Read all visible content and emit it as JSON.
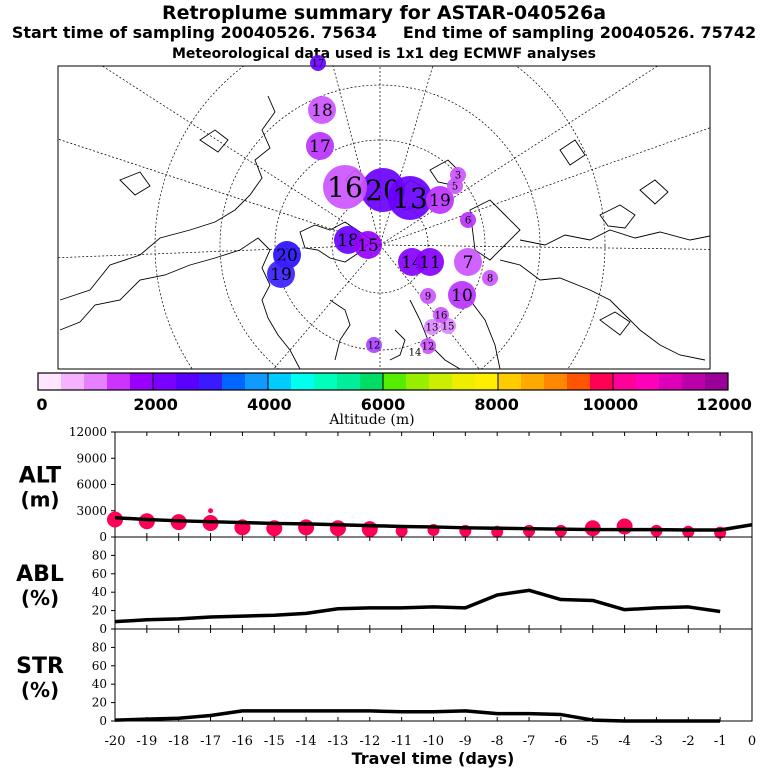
{
  "title": "Retroplume summary for ASTAR-040526a",
  "start_label": "Start time of sampling 20040526. 75634",
  "end_label": "End time of sampling 20040526. 75742",
  "met_label": "Meteorological data used is 1x1 deg ECMWF analyses",
  "map": {
    "plumes": [
      {
        "label": "20",
        "color": "#6a00ff",
        "size": 3
      },
      {
        "label": "16",
        "color": "#cc55ff",
        "size": 3
      },
      {
        "label": "13",
        "color": "#6a00ff",
        "size": 3
      },
      {
        "label": "18",
        "color": "#cc55ff",
        "size": 2
      },
      {
        "label": "17",
        "color": "#bb33ff",
        "size": 2
      },
      {
        "label": "19",
        "color": "#bb33ff",
        "size": 2
      },
      {
        "label": "20",
        "color": "#2a10ff",
        "size": 2
      },
      {
        "label": "19",
        "color": "#3a20ff",
        "size": 2
      },
      {
        "label": "18",
        "color": "#6a00ff",
        "size": 2
      },
      {
        "label": "15",
        "color": "#9900ff",
        "size": 2
      },
      {
        "label": "14",
        "color": "#8800ff",
        "size": 2
      },
      {
        "label": "11",
        "color": "#8800ff",
        "size": 2
      },
      {
        "label": "10",
        "color": "#bb33ff",
        "size": 2
      },
      {
        "label": "9",
        "color": "#cc55ff",
        "size": 1
      },
      {
        "label": "8",
        "color": "#cc55ff",
        "size": 1
      },
      {
        "label": "7",
        "color": "#cc55ff",
        "size": 2
      },
      {
        "label": "6",
        "color": "#bb33ff",
        "size": 1
      },
      {
        "label": "5",
        "color": "#cc55ff",
        "size": 1
      },
      {
        "label": "3",
        "color": "#cc55ff",
        "size": 1
      },
      {
        "label": "12",
        "color": "#cc55ff",
        "size": 1
      },
      {
        "label": "13",
        "color": "#dd88ff",
        "size": 1
      },
      {
        "label": "14",
        "color": "#ffffff",
        "size": 1
      },
      {
        "label": "15",
        "color": "#dd88ff",
        "size": 1
      },
      {
        "label": "16",
        "color": "#cc55ff",
        "size": 1
      },
      {
        "label": "12",
        "color": "#aa44ff",
        "size": 1
      },
      {
        "label": "17",
        "color": "#6a00ff",
        "size": 1
      }
    ]
  },
  "colorbar": {
    "ticks": [
      "0",
      "2000",
      "4000",
      "6000",
      "8000",
      "10000",
      "12000"
    ],
    "label": "Altitude (m)",
    "colors": [
      "#ffe6ff",
      "#f5b3ff",
      "#e680ff",
      "#cc33ff",
      "#9900ff",
      "#7a00ff",
      "#5a00ff",
      "#3a1aff",
      "#0066ff",
      "#1199ff",
      "#00ccff",
      "#00ffee",
      "#00ffbb",
      "#00ee99",
      "#00dd66",
      "#55ee00",
      "#99ee00",
      "#ccee00",
      "#eeee00",
      "#ffee00",
      "#ffcc00",
      "#ffaa00",
      "#ff8800",
      "#ff5500",
      "#ff0055",
      "#ff0099",
      "#ff00bb",
      "#dd00bb",
      "#bb00aa",
      "#990099"
    ]
  },
  "chart_data": [
    {
      "type": "line",
      "name": "ALT",
      "ylabel": "ALT (m)",
      "ylabel_line1": "ALT",
      "ylabel_line2": "(m)",
      "ylim": [
        0,
        12000
      ],
      "yticks": [
        "0",
        "3000",
        "6000",
        "9000",
        "12000"
      ],
      "x": [
        -20,
        -19,
        -18,
        -17,
        -16,
        -15,
        -14,
        -13,
        -12,
        -11,
        -10,
        -9,
        -8,
        -7,
        -6,
        -5,
        -4,
        -3,
        -2,
        -1,
        0
      ],
      "values": [
        2200,
        2000,
        1850,
        1750,
        1650,
        1550,
        1500,
        1400,
        1300,
        1200,
        1150,
        1050,
        1000,
        950,
        900,
        850,
        850,
        850,
        800,
        800,
        1400
      ],
      "markers": [
        {
          "x": -20,
          "y": 2000,
          "r": 3
        },
        {
          "x": -19,
          "y": 1800,
          "r": 3
        },
        {
          "x": -18,
          "y": 1700,
          "r": 3
        },
        {
          "x": -17,
          "y": 1600,
          "r": 3
        },
        {
          "x": -17,
          "y": 3000,
          "r": 1
        },
        {
          "x": -16,
          "y": 1100,
          "r": 3
        },
        {
          "x": -15,
          "y": 1000,
          "r": 3
        },
        {
          "x": -14,
          "y": 1100,
          "r": 3
        },
        {
          "x": -13,
          "y": 1000,
          "r": 3
        },
        {
          "x": -12,
          "y": 900,
          "r": 3
        },
        {
          "x": -11,
          "y": 700,
          "r": 2
        },
        {
          "x": -10,
          "y": 800,
          "r": 2
        },
        {
          "x": -9,
          "y": 700,
          "r": 2
        },
        {
          "x": -8,
          "y": 600,
          "r": 2
        },
        {
          "x": -7,
          "y": 700,
          "r": 2
        },
        {
          "x": -6,
          "y": 700,
          "r": 2
        },
        {
          "x": -5,
          "y": 1000,
          "r": 3
        },
        {
          "x": -4,
          "y": 1200,
          "r": 3
        },
        {
          "x": -3,
          "y": 700,
          "r": 2
        },
        {
          "x": -2,
          "y": 600,
          "r": 2
        },
        {
          "x": -1,
          "y": 500,
          "r": 2
        }
      ]
    },
    {
      "type": "line",
      "name": "ABL",
      "ylabel": "ABL (%)",
      "ylabel_line1": "ABL",
      "ylabel_line2": "(%)",
      "ylim": [
        0,
        100
      ],
      "yticks": [
        "0",
        "20",
        "40",
        "60",
        "80"
      ],
      "x": [
        -20,
        -19,
        -18,
        -17,
        -16,
        -15,
        -14,
        -13,
        -12,
        -11,
        -10,
        -9,
        -8,
        -7,
        -6,
        -5,
        -4,
        -3,
        -2,
        -1
      ],
      "values": [
        8,
        10,
        11,
        13,
        14,
        15,
        17,
        22,
        23,
        23,
        24,
        23,
        37,
        42,
        32,
        31,
        21,
        23,
        24,
        19
      ]
    },
    {
      "type": "line",
      "name": "STR",
      "ylabel": "STR (%)",
      "ylabel_line1": "STR",
      "ylabel_line2": "(%)",
      "ylim": [
        0,
        100
      ],
      "yticks": [
        "0",
        "20",
        "40",
        "60",
        "80"
      ],
      "x": [
        -20,
        -19,
        -18,
        -17,
        -16,
        -15,
        -14,
        -13,
        -12,
        -11,
        -10,
        -9,
        -8,
        -7,
        -6,
        -5,
        -4,
        -3,
        -2,
        -1
      ],
      "values": [
        1,
        2,
        3,
        6,
        11,
        11,
        11,
        11,
        11,
        10,
        10,
        11,
        8,
        8,
        7,
        1,
        0,
        0,
        0,
        0
      ]
    }
  ],
  "xaxis": {
    "ticks": [
      "-20",
      "-19",
      "-18",
      "-17",
      "-16",
      "-15",
      "-14",
      "-13",
      "-12",
      "-11",
      "-10",
      "-9",
      "-8",
      "-7",
      "-6",
      "-5",
      "-4",
      "-3",
      "-2",
      "-1",
      "0"
    ],
    "label": "Travel time (days)"
  },
  "colors": {
    "line": "#000000",
    "marker": "#ff0055",
    "frame": "#000000"
  }
}
